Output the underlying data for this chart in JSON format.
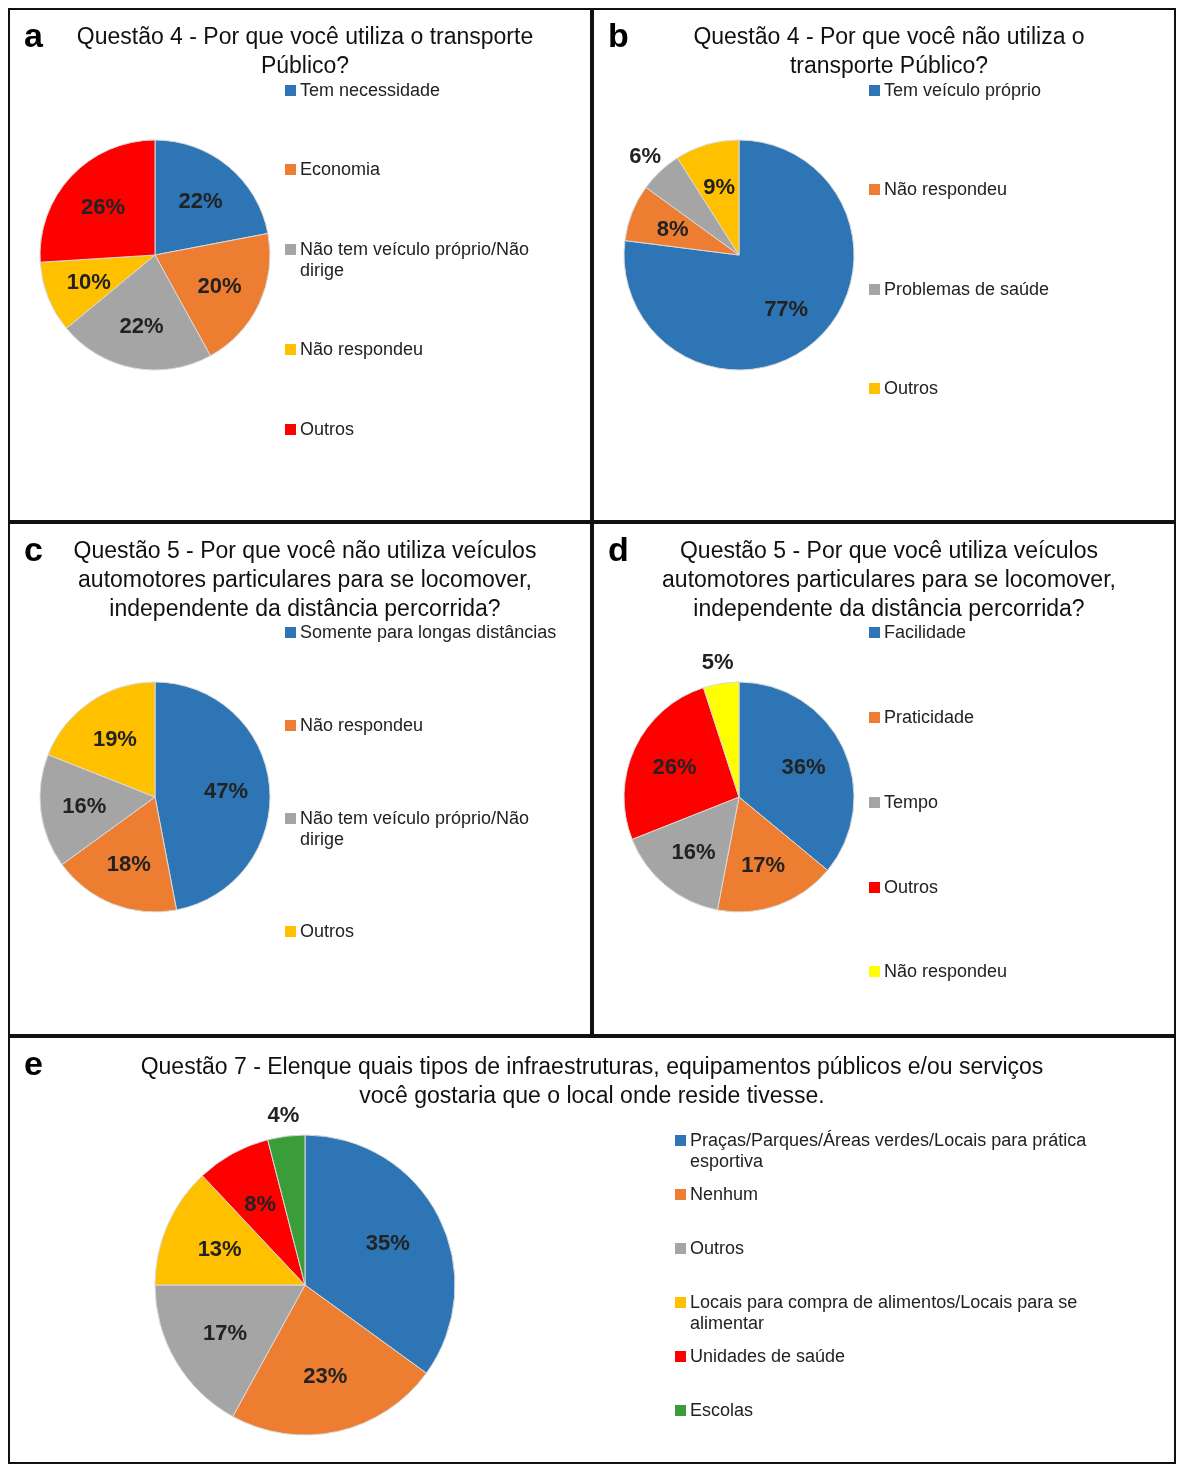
{
  "chart_data": [
    {
      "type": "pie",
      "title": "Questão 4 - Por que você utiliza o transporte Público?",
      "annotations": [
        "a"
      ],
      "legend": "right",
      "categories": [
        "Tem necessidade",
        "Economia",
        "Não tem veículo próprio/Não dirige",
        "Não respondeu",
        "Outros"
      ],
      "values": [
        22,
        20,
        22,
        10,
        26
      ],
      "value_labels": [
        "22%",
        "20%",
        "22%",
        "10%",
        "26%"
      ],
      "colors": [
        "#2e75b6",
        "#ed7d31",
        "#a5a5a5",
        "#ffc000",
        "#ff0000"
      ]
    },
    {
      "type": "pie",
      "title": "Questão 4 - Por que você não utiliza o transporte Público?",
      "annotations": [
        "b"
      ],
      "legend": "right",
      "categories": [
        "Tem veículo próprio",
        "Não respondeu",
        "Problemas de saúde",
        "Outros"
      ],
      "values": [
        77,
        8,
        6,
        9
      ],
      "value_labels": [
        "77%",
        "8%",
        "6%",
        "9%"
      ],
      "colors": [
        "#2e75b6",
        "#ed7d31",
        "#a5a5a5",
        "#ffc000"
      ]
    },
    {
      "type": "pie",
      "title": "Questão 5 - Por que você não utiliza veículos automotores particulares para se locomover, independente da distância percorrida?",
      "annotations": [
        "c"
      ],
      "legend": "right",
      "categories": [
        "Somente para longas distâncias",
        "Não respondeu",
        "Não tem veículo próprio/Não dirige",
        "Outros"
      ],
      "values": [
        47,
        18,
        16,
        19
      ],
      "value_labels": [
        "47%",
        "18%",
        "16%",
        "19%"
      ],
      "colors": [
        "#2e75b6",
        "#ed7d31",
        "#a5a5a5",
        "#ffc000"
      ]
    },
    {
      "type": "pie",
      "title": "Questão 5 - Por que você utiliza veículos automotores particulares para se locomover, independente da distância percorrida?",
      "annotations": [
        "d"
      ],
      "legend": "right",
      "categories": [
        "Facilidade",
        "Praticidade",
        "Tempo",
        "Outros",
        "Não respondeu"
      ],
      "values": [
        36,
        17,
        16,
        26,
        5
      ],
      "value_labels": [
        "36%",
        "17%",
        "16%",
        "26%",
        "5%"
      ],
      "colors": [
        "#2e75b6",
        "#ed7d31",
        "#a5a5a5",
        "#ff0000",
        "#ffff00"
      ]
    },
    {
      "type": "pie",
      "title": "Questão 7 - Elenque quais tipos de infraestruturas, equipamentos públicos e/ou serviços você gostaria que o local onde reside tivesse.",
      "annotations": [
        "e"
      ],
      "legend": "right",
      "categories": [
        "Praças/Parques/Áreas verdes/Locais para prática esportiva",
        "Nenhum",
        "Outros",
        "Locais para compra de alimentos/Locais para se alimentar",
        "Unidades de saúde",
        "Escolas"
      ],
      "values": [
        35,
        23,
        17,
        13,
        8,
        4
      ],
      "value_labels": [
        "35%",
        "23%",
        "17%",
        "13%",
        "8%",
        "4%"
      ],
      "colors": [
        "#2e75b6",
        "#ed7d31",
        "#a5a5a5",
        "#ffc000",
        "#ff0000",
        "#3a9d3a"
      ]
    }
  ]
}
